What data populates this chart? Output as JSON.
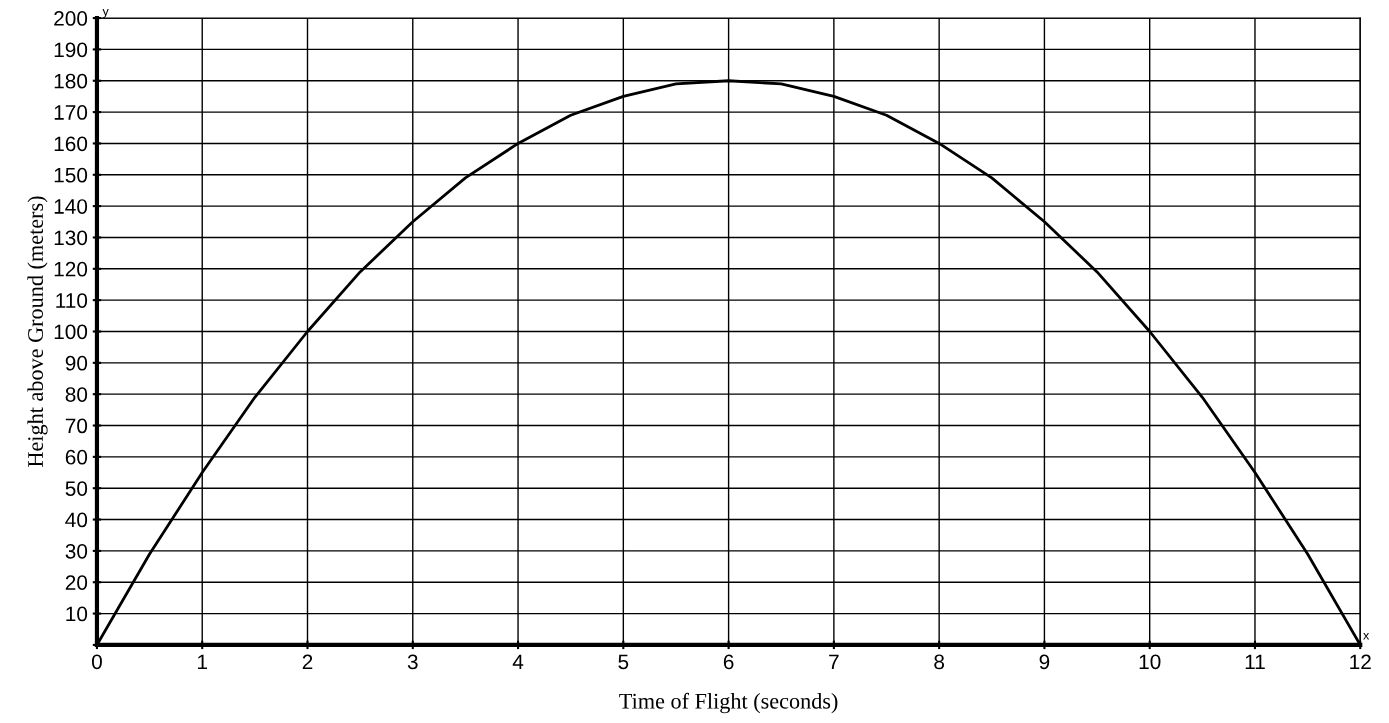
{
  "chart_data": {
    "type": "line",
    "xlabel": "Time of Flight (seconds)",
    "ylabel": "Height above Ground (meters)",
    "x": [
      0,
      0.5,
      1,
      1.5,
      2,
      2.5,
      3,
      3.5,
      4,
      4.5,
      5,
      5.5,
      6,
      6.5,
      7,
      7.5,
      8,
      8.5,
      9,
      9.5,
      10,
      10.5,
      11,
      11.5,
      12
    ],
    "series": [
      {
        "color": "#000000",
        "values": [
          0,
          29,
          55,
          79,
          100,
          119,
          135,
          149,
          160,
          169,
          175,
          179,
          180,
          179,
          175,
          169,
          160,
          149,
          135,
          119,
          100,
          79,
          55,
          29,
          0
        ]
      }
    ],
    "xlim": [
      0,
      12
    ],
    "xticks": [
      0,
      1,
      2,
      3,
      4,
      5,
      6,
      7,
      8,
      9,
      10,
      11,
      12
    ],
    "ylim": [
      0,
      200
    ],
    "yticks": [
      {
        "value": 0,
        "label": null
      },
      10,
      20,
      30,
      40,
      50,
      60,
      70,
      80,
      90,
      100,
      110,
      120,
      130,
      140,
      150,
      160,
      170,
      180,
      190,
      200
    ],
    "annotations": [
      "y",
      "x"
    ],
    "grid": true,
    "marker": "none",
    "line_style": "solid"
  }
}
